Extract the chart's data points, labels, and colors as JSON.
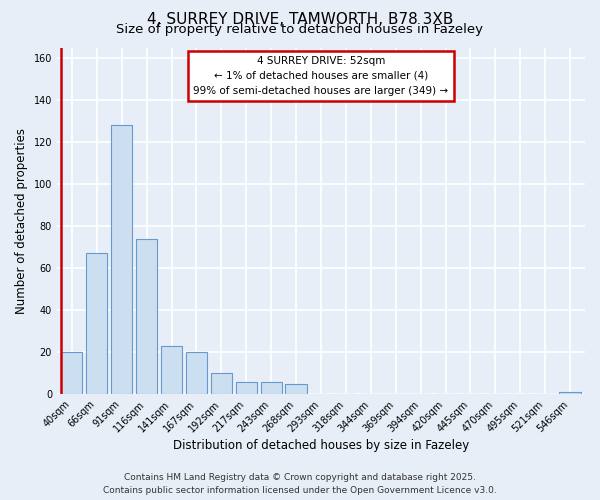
{
  "title": "4, SURREY DRIVE, TAMWORTH, B78 3XB",
  "subtitle": "Size of property relative to detached houses in Fazeley",
  "xlabel": "Distribution of detached houses by size in Fazeley",
  "ylabel": "Number of detached properties",
  "bar_labels": [
    "40sqm",
    "66sqm",
    "91sqm",
    "116sqm",
    "141sqm",
    "167sqm",
    "192sqm",
    "217sqm",
    "243sqm",
    "268sqm",
    "293sqm",
    "318sqm",
    "344sqm",
    "369sqm",
    "394sqm",
    "420sqm",
    "445sqm",
    "470sqm",
    "495sqm",
    "521sqm",
    "546sqm"
  ],
  "bar_values": [
    20,
    67,
    128,
    74,
    23,
    20,
    10,
    6,
    6,
    5,
    0,
    0,
    0,
    0,
    0,
    0,
    0,
    0,
    0,
    0,
    1
  ],
  "bar_color": "#ccdff0",
  "bar_edge_color": "#6699cc",
  "highlight_color": "#cc0000",
  "ylim": [
    0,
    165
  ],
  "yticks": [
    0,
    20,
    40,
    60,
    80,
    100,
    120,
    140,
    160
  ],
  "annotation_title": "4 SURREY DRIVE: 52sqm",
  "annotation_line1": "← 1% of detached houses are smaller (4)",
  "annotation_line2": "99% of semi-detached houses are larger (349) →",
  "annotation_box_color": "#ffffff",
  "annotation_box_edge": "#cc0000",
  "footer_line1": "Contains HM Land Registry data © Crown copyright and database right 2025.",
  "footer_line2": "Contains public sector information licensed under the Open Government Licence v3.0.",
  "background_color": "#e8eef8",
  "plot_bg_color": "#e8eef8",
  "grid_color": "#ffffff",
  "title_fontsize": 11,
  "subtitle_fontsize": 9.5,
  "axis_label_fontsize": 8.5,
  "tick_fontsize": 7,
  "annotation_fontsize": 7.5,
  "footer_fontsize": 6.5
}
